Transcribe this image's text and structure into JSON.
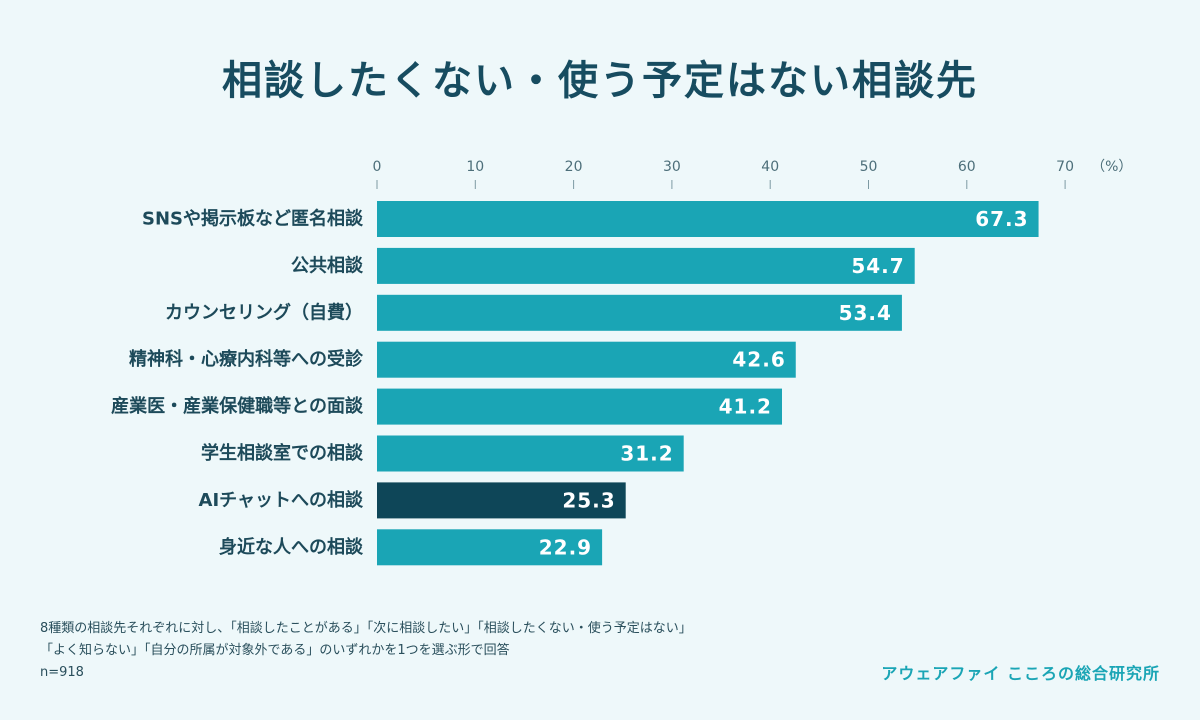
{
  "title": "相談したくない・使う予定はない相談先",
  "chart_data": {
    "type": "bar",
    "orientation": "horizontal",
    "categories": [
      "SNSや掲示板など匿名相談",
      "公共相談",
      "カウンセリング（自費）",
      "精神科・心療内科等への受診",
      "産業医・産業保健職等との面談",
      "学生相談室での相談",
      "AIチャットへの相談",
      "身近な人への相談"
    ],
    "values": [
      67.3,
      54.7,
      53.4,
      42.6,
      41.2,
      31.2,
      25.3,
      22.9
    ],
    "value_labels": [
      "67.3",
      "54.7",
      "53.4",
      "42.6",
      "41.2",
      "31.2",
      "25.3",
      "22.9"
    ],
    "highlight_category": "AIチャットへの相談",
    "xlim": [
      0,
      70
    ],
    "ticks": [
      0,
      10,
      20,
      30,
      40,
      50,
      60,
      70
    ],
    "unit": "（%）",
    "grid": false,
    "colors": {
      "bar": "#1aa5b5",
      "highlight": "#0e4658"
    }
  },
  "notes": [
    "8種類の相談先それぞれに対し、「相談したことがある」「次に相談したい」「相談したくない・使う予定はない」",
    "「よく知らない」「自分の所属が対象外である」のいずれかを1つを選ぶ形で回答",
    "n=918"
  ],
  "brand": "アウェアファイ こころの総合研究所"
}
